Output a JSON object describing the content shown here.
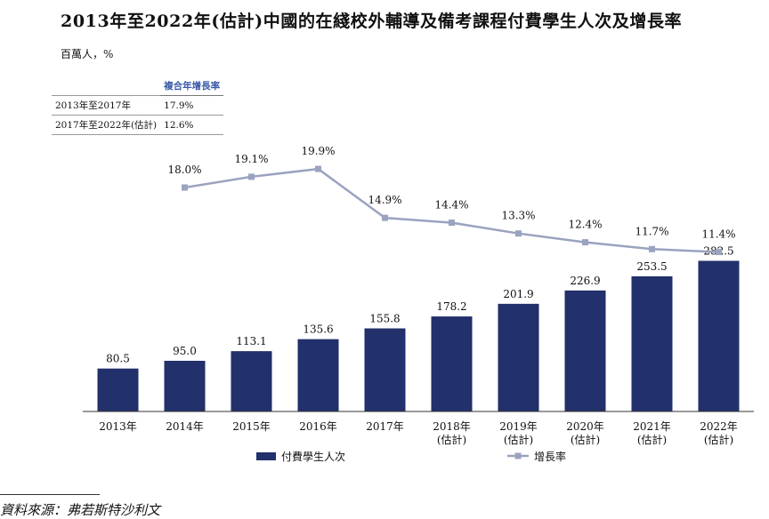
{
  "title": "2013年至2022年(估計)中國的在綫校外輔導及備考課程付費學生人次及增長率",
  "unit_label": "百萬人，%",
  "cagr_table": {
    "header": "複合年增長率",
    "rows": [
      {
        "period": "2013年至2017年",
        "value": "17.9%"
      },
      {
        "period": "2017年至2022年(估計)",
        "value": "12.6%"
      }
    ]
  },
  "chart_data": {
    "type": "bar",
    "categories": [
      "2013年",
      "2014年",
      "2015年",
      "2016年",
      "2017年",
      "2018年\n(估計)",
      "2019年\n(估計)",
      "2020年\n(估計)",
      "2021年\n(估計)",
      "2022年\n(估計)"
    ],
    "series": [
      {
        "name": "付費學生人次",
        "type": "bar",
        "color": "#22306b",
        "values": [
          80.5,
          95.0,
          113.1,
          135.6,
          155.8,
          178.2,
          201.9,
          226.9,
          253.5,
          282.5
        ],
        "labels": [
          "80.5",
          "95.0",
          "113.1",
          "135.6",
          "155.8",
          "178.2",
          "201.9",
          "226.9",
          "253.5",
          "282.5"
        ]
      },
      {
        "name": "增長率",
        "type": "line",
        "color": "#9aa3bf",
        "values": [
          null,
          18.0,
          19.1,
          19.9,
          14.9,
          14.4,
          13.3,
          12.4,
          11.7,
          11.4
        ],
        "labels": [
          "",
          "18.0%",
          "19.1%",
          "19.9%",
          "14.9%",
          "14.4%",
          "13.3%",
          "12.4%",
          "11.7%",
          "11.4%"
        ]
      }
    ],
    "legend": "bottom-center"
  },
  "source": "資料來源：弗若斯特沙利文"
}
